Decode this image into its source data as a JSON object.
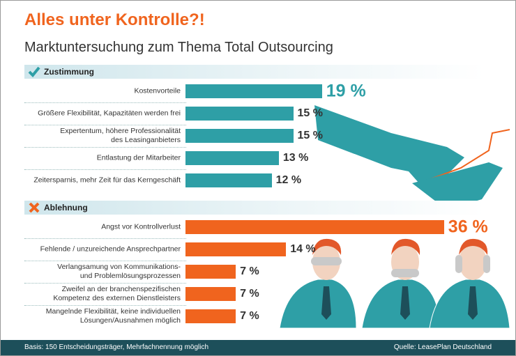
{
  "title": "Alles unter Kontrolle?!",
  "subtitle": "Marktuntersuchung zum Thema Total Outsourcing",
  "footer": {
    "basis": "Basis: 150 Entscheidungsträger, Mehrfachnennung möglich",
    "source": "Quelle: LeasePlan Deutschland"
  },
  "chart_data": [
    {
      "type": "bar",
      "orientation": "horizontal",
      "title": "Zustimmung",
      "color": "#2e9fa6",
      "categories": [
        "Kostenvorteile",
        "Größere Flexibilität, Kapazitäten werden frei",
        "Expertentum, höhere Professionalität\ndes Leasinganbieters",
        "Entlastung der Mitarbeiter",
        "Zeitersparnis, mehr Zeit für das Kerngeschäft"
      ],
      "values": [
        19,
        15,
        15,
        13,
        12
      ],
      "value_labels": [
        "19 %",
        "15 %",
        "15 %",
        "13 %",
        "12 %"
      ]
    },
    {
      "type": "bar",
      "orientation": "horizontal",
      "title": "Ablehnung",
      "color": "#f0641e",
      "categories": [
        "Angst vor Kontrollverlust",
        "Fehlende / unzureichende Ansprechpartner",
        "Verlangsamung von Kommunikations-\nund Problemlösungsprozessen",
        "Zweifel an der branchenspezifischen\nKompetenz des externen Dienstleisters",
        "Mangelnde Flexibilität, keine individuellen\nLösungen/Ausnahmen möglich"
      ],
      "values": [
        36,
        14,
        7,
        7,
        7
      ],
      "value_labels": [
        "36 %",
        "14 %",
        "7 %",
        "7 %",
        "7 %"
      ]
    }
  ]
}
